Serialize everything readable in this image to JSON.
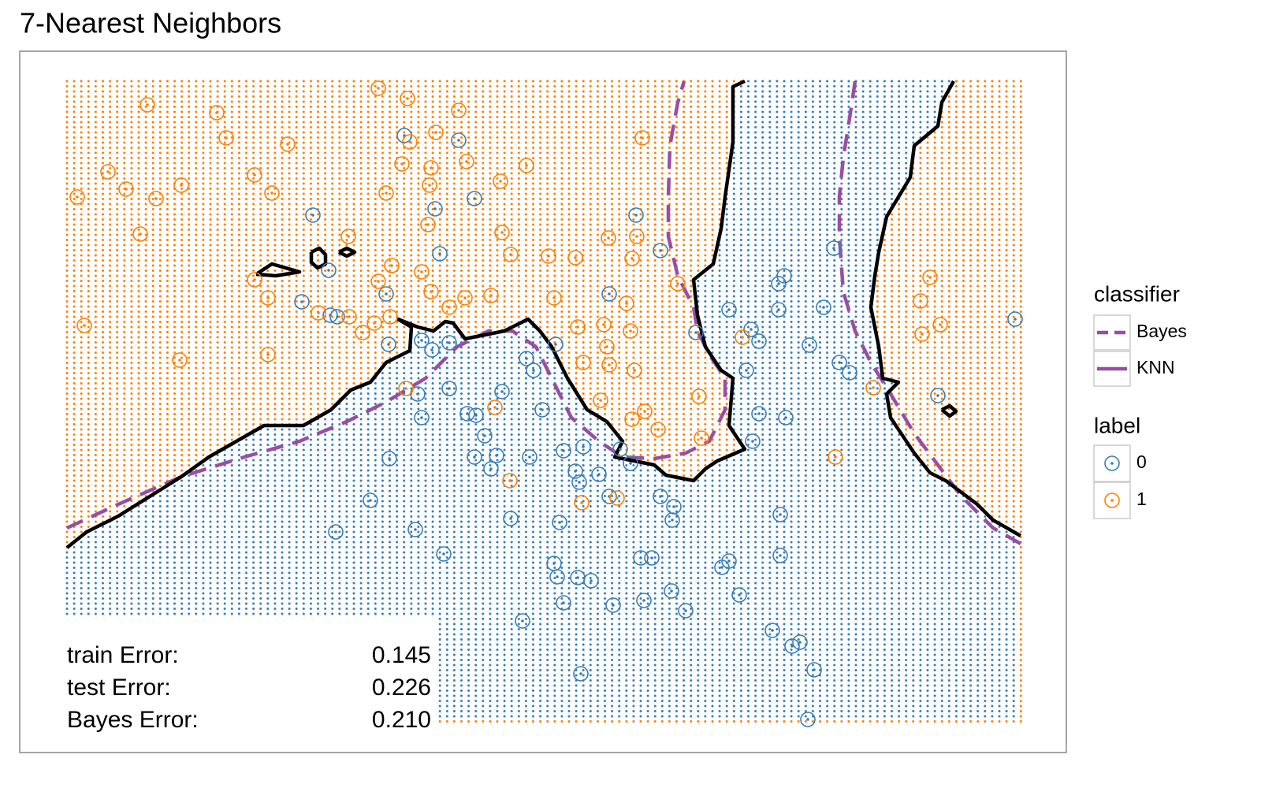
{
  "chart_data": {
    "type": "scatter",
    "title": "7-Nearest Neighbors",
    "xlim": [
      0,
      1328
    ],
    "ylim": [
      0,
      890
    ],
    "series": [
      {
        "name": "0",
        "color": "#377eb8",
        "x": [
          488,
          557,
          577,
          527,
          372,
          533,
          392,
          782,
          813,
          1033,
          970,
          963,
          465,
          358,
          394,
          403,
          748,
          900,
          963,
          1020,
          928,
          938,
          858,
          1002,
          468,
          510,
          523,
          545,
          680,
          1040,
          1053,
          922,
          643,
          652,
          505,
          545,
          612,
          510,
          568,
          579,
          590,
          663,
          938,
          972,
          469,
          577,
          605,
          598,
          647,
          690,
          715,
          762,
          775,
          705,
          735,
          710,
          748,
          813,
          830,
          445,
          623,
          685,
          828,
          965,
          502,
          401,
          538,
          678,
          788,
          802,
          891,
          900,
          965,
          682,
          708,
          725,
          792,
          827,
          913,
          753,
          690,
          845,
          638,
          955,
          980,
          990,
          1008,
          712,
          1000,
          930,
          1165,
          1263
        ],
        "y": [
          783,
          777,
          703,
          690,
          682,
          633,
          612,
          682,
          637,
          640,
          605,
          595,
          582,
          572,
          555,
          553,
          582,
          562,
          562,
          565,
          537,
          522,
          533,
          517,
          518,
          523,
          511,
          520,
          518,
          495,
          482,
          485,
          500,
          485,
          455,
          462,
          458,
          425,
          430,
          428,
          402,
          435,
          430,
          425,
          373,
          375,
          377,
          360,
          375,
          383,
          388,
          385,
          367,
          357,
          353,
          343,
          325,
          325,
          312,
          320,
          297,
          292,
          295,
          302,
          283,
          280,
          252,
          240,
          247,
          247,
          235,
          243,
          250,
          223,
          222,
          218,
          193,
          205,
          200,
          187,
          190,
          180,
          167,
          155,
          135,
          140,
          105,
          100,
          42,
          395,
          453,
          550
        ]
      },
      {
        "name": "1",
        "color": "#ff7f00",
        "x": [
          455,
          492,
          557,
          162,
          250,
          262,
          340,
          528,
          485,
          495,
          567,
          522,
          112,
          205,
          135,
          73,
          173,
          298,
          320,
          465,
          520,
          610,
          643,
          790,
          153,
          417,
          518,
          612,
          623,
          671,
          705,
          747,
          783,
          777,
          472,
          510,
          455,
          298,
          315,
          522,
          565,
          598,
          678,
          770,
          379,
          418,
          450,
          470,
          82,
          203,
          315,
          435,
          545,
          708,
          741,
          745,
          775,
          715,
          748,
          780,
          835,
          917,
          862,
          737,
          777,
          793,
          810,
          865,
          603,
          490,
          622,
          713,
          758,
          1155,
          1143,
          1168,
          1145,
          1083,
          1035
        ],
        "y": [
          843,
          830,
          815,
          822,
          812,
          780,
          772,
          787,
          747,
          775,
          750,
          742,
          737,
          720,
          715,
          705,
          703,
          733,
          710,
          710,
          720,
          725,
          745,
          780,
          658,
          655,
          670,
          660,
          632,
          630,
          628,
          653,
          655,
          627,
          618,
          610,
          598,
          600,
          577,
          585,
          577,
          580,
          577,
          570,
          558,
          553,
          545,
          553,
          542,
          498,
          505,
          533,
          565,
          540,
          543,
          515,
          535,
          495,
          492,
          485,
          595,
          527,
          452,
          447,
          423,
          433,
          410,
          399,
          438,
          462,
          345,
          317,
          323,
          603,
          573,
          543,
          531,
          463,
          375
        ]
      }
    ],
    "boundaries": [
      {
        "name": "Bayes",
        "color": "#984ea3",
        "line_color": "#984ea3",
        "dashed": true,
        "x": [
          60,
          125,
          205,
          285,
          355,
          415,
          465,
          515,
          555,
          595,
          625,
          655,
          675,
          700,
          735,
          765,
          805,
          845,
          875,
          895,
          895,
          875,
          860,
          855,
          835,
          823,
          823,
          825,
          835,
          843,
          null,
          1060,
          1053,
          1045,
          1040,
          1040,
          1045,
          1060,
          1080,
          1105,
          1135,
          1165,
          1195,
          1235,
          1270
        ],
        "y": [
          285,
          315,
          350,
          375,
          395,
          420,
          445,
          475,
          515,
          535,
          535,
          515,
          475,
          425,
          395,
          375,
          373,
          380,
          395,
          435,
          475,
          505,
          535,
          565,
          605,
          655,
          705,
          770,
          825,
          852,
          null,
          852,
          805,
          755,
          705,
          655,
          585,
          535,
          495,
          455,
          405,
          365,
          325,
          285,
          265
        ]
      },
      {
        "name": "KNN",
        "color": "#984ea3",
        "line_color": "#000000",
        "dashed": false,
        "x": [
          60,
          85,
          125,
          165,
          205,
          240,
          275,
          310,
          360,
          395,
          420,
          445,
          465,
          495,
          497,
          480,
          505,
          525,
          540,
          550,
          565,
          615,
          645,
          660,
          675,
          695,
          720,
          745,
          765,
          755,
          805,
          820,
          855,
          870,
          885,
          920,
          900,
          905,
          890,
          870,
          860,
          855,
          880,
          890,
          895,
          905,
          905,
          920,
          null,
          1185,
          1170,
          1165,
          1135,
          1130,
          1115,
          1100,
          1090,
          1085,
          1080,
          1090,
          1095,
          1115,
          1100,
          1105,
          1135,
          1155,
          1175,
          1215,
          1235,
          1270,
          null,
          300,
          320,
          355,
          325,
          300,
          null,
          370,
          380,
          388,
          388,
          378,
          370,
          370,
          null,
          405,
          415,
          425,
          415,
          405,
          null,
          1170,
          1180,
          1188,
          1180,
          1170
        ],
        "y": [
          260,
          280,
          300,
          325,
          350,
          375,
          395,
          415,
          415,
          435,
          460,
          470,
          495,
          510,
          540,
          550,
          540,
          535,
          547,
          545,
          525,
          535,
          550,
          535,
          515,
          475,
          435,
          420,
          395,
          375,
          365,
          352,
          345,
          360,
          370,
          385,
          415,
          475,
          485,
          515,
          555,
          600,
          620,
          665,
          705,
          775,
          845,
          852,
          null,
          852,
          825,
          795,
          770,
          730,
          705,
          680,
          635,
          605,
          565,
          515,
          475,
          470,
          455,
          425,
          380,
          355,
          345,
          315,
          295,
          275,
          null,
          607,
          620,
          610,
          605,
          607,
          null,
          635,
          640,
          632,
          620,
          615,
          622,
          635,
          null,
          635,
          640,
          635,
          630,
          635,
          null,
          435,
          440,
          433,
          427,
          435
        ]
      }
    ],
    "classifier_legend_title": "classifier",
    "label_legend_title": "label",
    "errors": {
      "names": [
        "train Error:",
        "test Error:",
        "Bayes Error:"
      ],
      "values": [
        0.145,
        0.226,
        0.21
      ],
      "value_labels": [
        "0.145",
        "0.226",
        "0.210"
      ]
    }
  }
}
